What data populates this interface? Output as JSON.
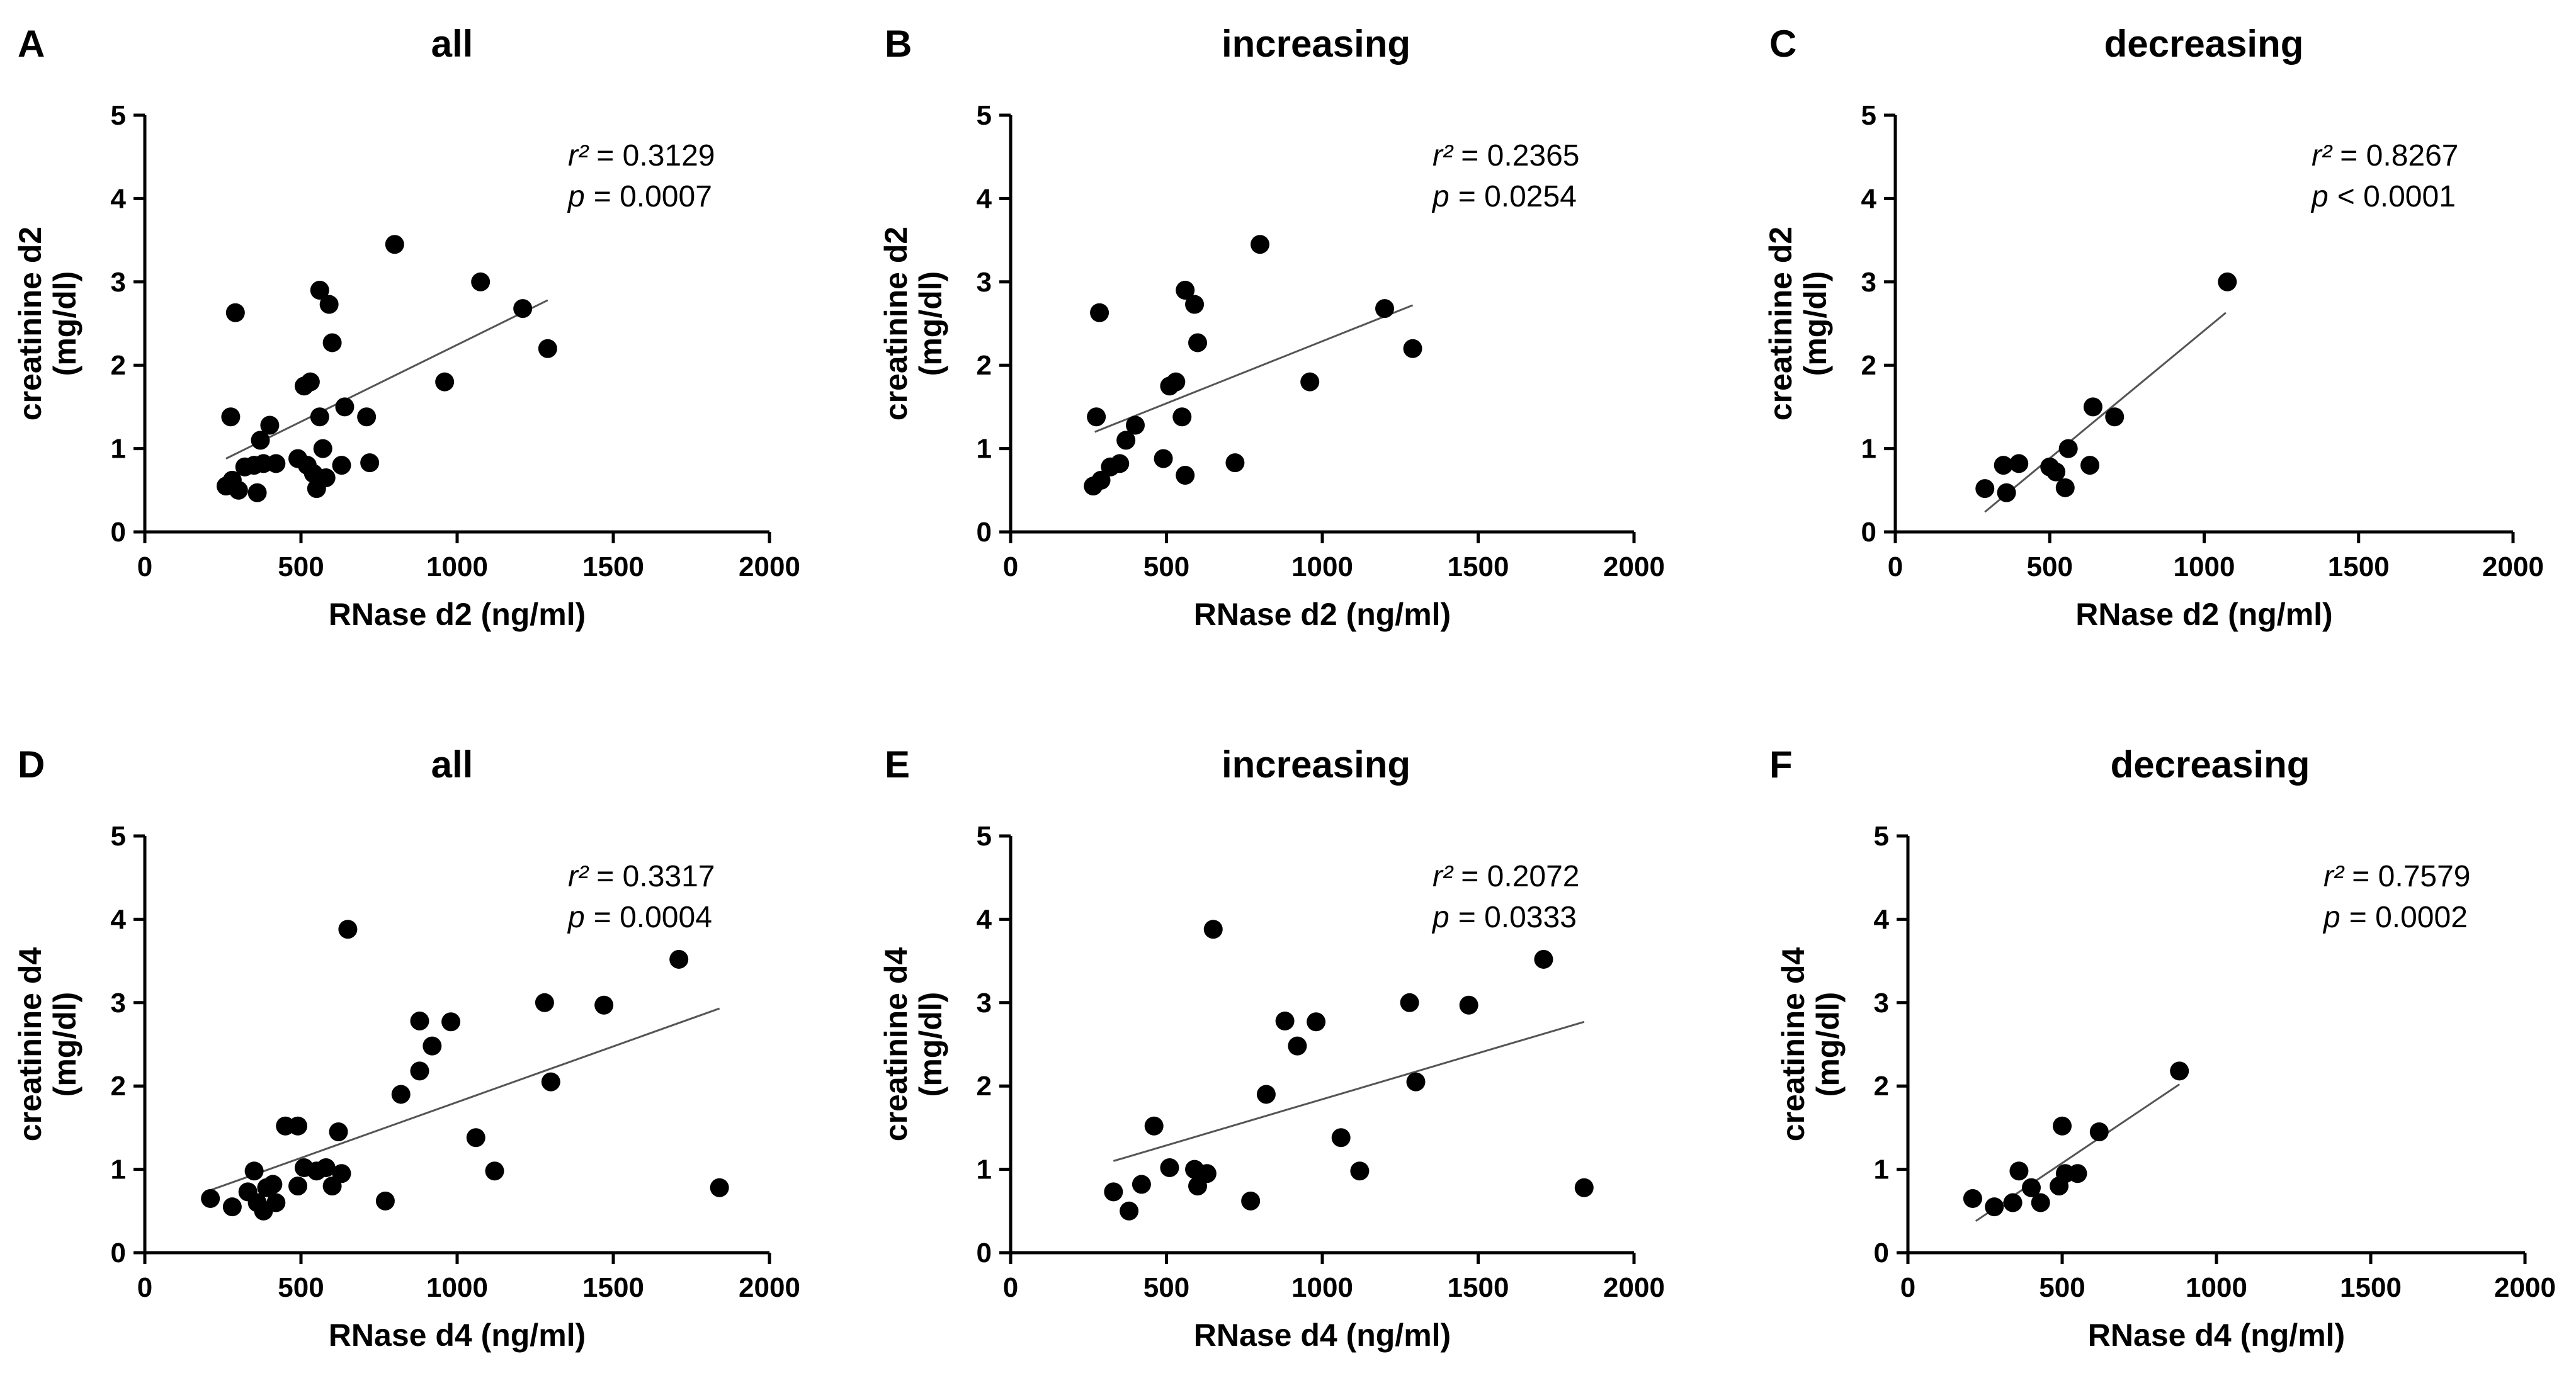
{
  "chart_data": [
    {
      "type": "scatter",
      "panel": "A",
      "title": "all",
      "xlabel": "RNase d2 (ng/ml)",
      "ylabel_line1": "creatinine d2",
      "ylabel_line2": "(mg/dl)",
      "xlim": [
        0,
        2000
      ],
      "ylim": [
        0,
        5
      ],
      "xticks": [
        "0",
        "500",
        "1000",
        "1500",
        "2000"
      ],
      "yticks": [
        "0",
        "1",
        "2",
        "3",
        "4",
        "5"
      ],
      "r2_label": "r²",
      "r2_value": "= 0.3129",
      "p_label": "p",
      "p_value": "= 0.0007",
      "fit": [
        [
          260,
          0.88
        ],
        [
          1290,
          2.78
        ]
      ],
      "points": [
        [
          260,
          0.55
        ],
        [
          275,
          1.38
        ],
        [
          280,
          0.62
        ],
        [
          290,
          2.63
        ],
        [
          300,
          0.5
        ],
        [
          320,
          0.78
        ],
        [
          350,
          0.8
        ],
        [
          360,
          0.47
        ],
        [
          370,
          1.1
        ],
        [
          380,
          0.82
        ],
        [
          400,
          1.28
        ],
        [
          420,
          0.82
        ],
        [
          490,
          0.88
        ],
        [
          510,
          1.75
        ],
        [
          520,
          0.8
        ],
        [
          530,
          1.8
        ],
        [
          540,
          0.7
        ],
        [
          550,
          0.52
        ],
        [
          560,
          2.9
        ],
        [
          560,
          1.38
        ],
        [
          570,
          1.0
        ],
        [
          580,
          0.65
        ],
        [
          590,
          2.73
        ],
        [
          600,
          2.27
        ],
        [
          630,
          0.8
        ],
        [
          640,
          1.5
        ],
        [
          710,
          1.38
        ],
        [
          720,
          0.83
        ],
        [
          800,
          3.45
        ],
        [
          960,
          1.8
        ],
        [
          1075,
          3.0
        ],
        [
          1210,
          2.68
        ],
        [
          1290,
          2.2
        ]
      ]
    },
    {
      "type": "scatter",
      "panel": "B",
      "title": "increasing",
      "xlabel": "RNase d2 (ng/ml)",
      "ylabel_line1": "creatinine d2",
      "ylabel_line2": "(mg/dl)",
      "xlim": [
        0,
        2000
      ],
      "ylim": [
        0,
        5
      ],
      "xticks": [
        "0",
        "500",
        "1000",
        "1500",
        "2000"
      ],
      "yticks": [
        "0",
        "1",
        "2",
        "3",
        "4",
        "5"
      ],
      "r2_label": "r²",
      "r2_value": "= 0.2365",
      "p_label": "p",
      "p_value": "= 0.0254",
      "fit": [
        [
          270,
          1.2
        ],
        [
          1290,
          2.72
        ]
      ],
      "points": [
        [
          265,
          0.55
        ],
        [
          275,
          1.38
        ],
        [
          285,
          2.63
        ],
        [
          290,
          0.62
        ],
        [
          320,
          0.78
        ],
        [
          350,
          0.82
        ],
        [
          370,
          1.1
        ],
        [
          400,
          1.28
        ],
        [
          490,
          0.88
        ],
        [
          510,
          1.75
        ],
        [
          530,
          1.8
        ],
        [
          550,
          1.38
        ],
        [
          560,
          2.9
        ],
        [
          560,
          0.68
        ],
        [
          590,
          2.73
        ],
        [
          600,
          2.27
        ],
        [
          720,
          0.83
        ],
        [
          800,
          3.45
        ],
        [
          960,
          1.8
        ],
        [
          1200,
          2.68
        ],
        [
          1290,
          2.2
        ]
      ]
    },
    {
      "type": "scatter",
      "panel": "C",
      "title": "decreasing",
      "xlabel": "RNase d2 (ng/ml)",
      "ylabel_line1": "creatinine d2",
      "ylabel_line2": "(mg/dl)",
      "xlim": [
        0,
        2000
      ],
      "ylim": [
        0,
        5
      ],
      "xticks": [
        "0",
        "500",
        "1000",
        "1500",
        "2000"
      ],
      "yticks": [
        "0",
        "1",
        "2",
        "3",
        "4",
        "5"
      ],
      "r2_label": "r²",
      "r2_value": "= 0.8267",
      "p_label": "p",
      "p_value": "< 0.0001",
      "fit": [
        [
          290,
          0.24
        ],
        [
          1070,
          2.63
        ]
      ],
      "points": [
        [
          290,
          0.52
        ],
        [
          350,
          0.8
        ],
        [
          360,
          0.47
        ],
        [
          400,
          0.82
        ],
        [
          500,
          0.78
        ],
        [
          520,
          0.72
        ],
        [
          550,
          0.53
        ],
        [
          560,
          1.0
        ],
        [
          630,
          0.8
        ],
        [
          640,
          1.5
        ],
        [
          710,
          1.38
        ],
        [
          1075,
          3.0
        ]
      ]
    },
    {
      "type": "scatter",
      "panel": "D",
      "title": "all",
      "xlabel": "RNase d4 (ng/ml)",
      "ylabel_line1": "creatinine d4",
      "ylabel_line2": "(mg/dl)",
      "xlim": [
        0,
        2000
      ],
      "ylim": [
        0,
        5
      ],
      "xticks": [
        "0",
        "500",
        "1000",
        "1500",
        "2000"
      ],
      "yticks": [
        "0",
        "1",
        "2",
        "3",
        "4",
        "5"
      ],
      "r2_label": "r²",
      "r2_value": "= 0.3317",
      "p_label": "p",
      "p_value": "= 0.0004",
      "fit": [
        [
          210,
          0.75
        ],
        [
          1840,
          2.93
        ]
      ],
      "points": [
        [
          210,
          0.65
        ],
        [
          280,
          0.55
        ],
        [
          330,
          0.73
        ],
        [
          350,
          0.98
        ],
        [
          360,
          0.6
        ],
        [
          380,
          0.5
        ],
        [
          390,
          0.78
        ],
        [
          410,
          0.82
        ],
        [
          420,
          0.6
        ],
        [
          450,
          1.52
        ],
        [
          490,
          0.8
        ],
        [
          490,
          1.52
        ],
        [
          510,
          1.02
        ],
        [
          550,
          0.98
        ],
        [
          580,
          1.02
        ],
        [
          600,
          0.8
        ],
        [
          620,
          1.45
        ],
        [
          630,
          0.95
        ],
        [
          650,
          3.88
        ],
        [
          770,
          0.62
        ],
        [
          820,
          1.9
        ],
        [
          880,
          2.18
        ],
        [
          880,
          2.78
        ],
        [
          920,
          2.48
        ],
        [
          980,
          2.77
        ],
        [
          1060,
          1.38
        ],
        [
          1120,
          0.98
        ],
        [
          1280,
          3.0
        ],
        [
          1300,
          2.05
        ],
        [
          1470,
          2.97
        ],
        [
          1710,
          3.52
        ],
        [
          1840,
          0.78
        ]
      ]
    },
    {
      "type": "scatter",
      "panel": "E",
      "title": "increasing",
      "xlabel": "RNase d4 (ng/ml)",
      "ylabel_line1": "creatinine d4",
      "ylabel_line2": "(mg/dl)",
      "xlim": [
        0,
        2000
      ],
      "ylim": [
        0,
        5
      ],
      "xticks": [
        "0",
        "500",
        "1000",
        "1500",
        "2000"
      ],
      "yticks": [
        "0",
        "1",
        "2",
        "3",
        "4",
        "5"
      ],
      "r2_label": "r²",
      "r2_value": "= 0.2072",
      "p_label": "p",
      "p_value": "= 0.0333",
      "fit": [
        [
          330,
          1.1
        ],
        [
          1840,
          2.77
        ]
      ],
      "points": [
        [
          330,
          0.73
        ],
        [
          380,
          0.5
        ],
        [
          420,
          0.82
        ],
        [
          460,
          1.52
        ],
        [
          510,
          1.02
        ],
        [
          590,
          1.0
        ],
        [
          600,
          0.8
        ],
        [
          630,
          0.95
        ],
        [
          650,
          3.88
        ],
        [
          770,
          0.62
        ],
        [
          820,
          1.9
        ],
        [
          880,
          2.78
        ],
        [
          920,
          2.48
        ],
        [
          980,
          2.77
        ],
        [
          1060,
          1.38
        ],
        [
          1120,
          0.98
        ],
        [
          1280,
          3.0
        ],
        [
          1300,
          2.05
        ],
        [
          1470,
          2.97
        ],
        [
          1710,
          3.52
        ],
        [
          1840,
          0.78
        ]
      ]
    },
    {
      "type": "scatter",
      "panel": "F",
      "title": "decreasing",
      "xlabel": "RNase d4 (ng/ml)",
      "ylabel_line1": "creatinine d4",
      "ylabel_line2": "(mg/dl)",
      "xlim": [
        0,
        2000
      ],
      "ylim": [
        0,
        5
      ],
      "xticks": [
        "0",
        "500",
        "1000",
        "1500",
        "2000"
      ],
      "yticks": [
        "0",
        "1",
        "2",
        "3",
        "4",
        "5"
      ],
      "r2_label": "r²",
      "r2_value": "= 0.7579",
      "p_label": "p",
      "p_value": "= 0.0002",
      "fit": [
        [
          220,
          0.38
        ],
        [
          880,
          2.02
        ]
      ],
      "points": [
        [
          210,
          0.65
        ],
        [
          280,
          0.55
        ],
        [
          340,
          0.6
        ],
        [
          360,
          0.98
        ],
        [
          400,
          0.78
        ],
        [
          430,
          0.6
        ],
        [
          490,
          0.8
        ],
        [
          500,
          1.52
        ],
        [
          510,
          0.95
        ],
        [
          550,
          0.95
        ],
        [
          620,
          1.45
        ],
        [
          880,
          2.18
        ]
      ]
    }
  ]
}
